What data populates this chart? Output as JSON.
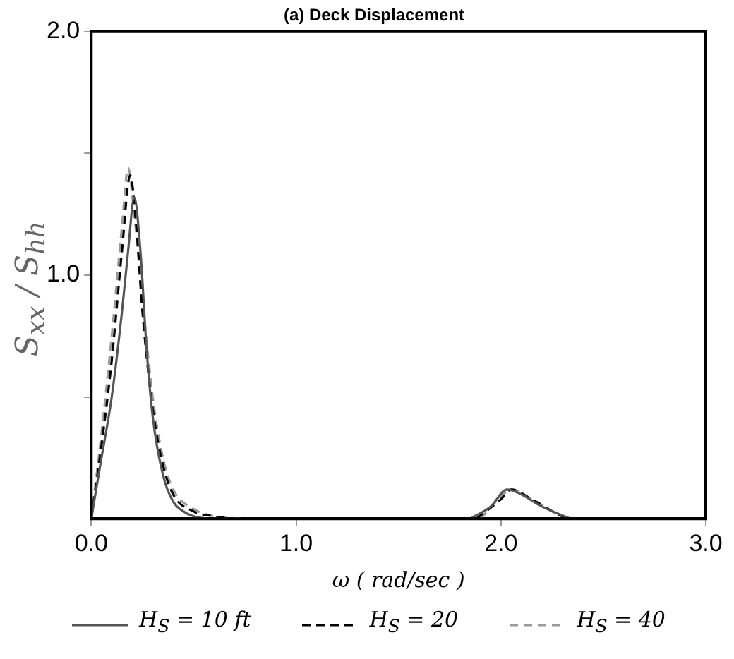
{
  "chart_data": {
    "type": "line",
    "title": "(a) Deck Displacement",
    "xlabel": "ω ( rad/sec )",
    "ylabel": "S$_{xx}$ / S$_{hh}$",
    "xlim": [
      0,
      3
    ],
    "xticks": [
      {
        "value": 0,
        "label": "0.0"
      },
      {
        "value": 1,
        "label": "1.0"
      },
      {
        "value": 2,
        "label": "2.0"
      },
      {
        "value": 3,
        "label": "3.0"
      }
    ],
    "ylim": [
      0,
      2
    ],
    "yticks": [
      {
        "value": 0.5,
        "label": null
      },
      {
        "value": 1,
        "label": "1.0"
      },
      {
        "value": 1.5,
        "label": null
      },
      {
        "value": 2,
        "label": "2.0"
      }
    ],
    "grid": false,
    "legend": "bottom",
    "marker": "none",
    "series": [
      {
        "name": "H$_{S}$ = 10 ft",
        "color": "#555555",
        "line_style": "solid",
        "x": [
          0,
          0.05,
          0.1,
          0.15,
          0.18,
          0.21,
          0.24,
          0.27,
          0.3,
          0.35,
          0.4,
          0.45,
          0.5,
          0.6,
          0.7,
          1.3,
          1.85,
          1.95,
          2.03,
          2.1,
          2.2,
          2.34
        ],
        "values": [
          0,
          0.25,
          0.5,
          0.85,
          1.1,
          1.32,
          1.1,
          0.7,
          0.42,
          0.18,
          0.07,
          0.03,
          0.01,
          0,
          0,
          null,
          0,
          0.05,
          0.12,
          0.1,
          0.05,
          0
        ]
      },
      {
        "name": "H$_{S}$ = 20",
        "color": "#000000",
        "line_style": "dashed",
        "x": [
          0,
          0.05,
          0.1,
          0.15,
          0.19,
          0.22,
          0.25,
          0.3,
          0.35,
          0.4,
          0.5,
          0.6,
          0.7,
          1.3,
          1.88,
          2.0,
          2.05,
          2.15,
          2.3,
          2.35
        ],
        "values": [
          0,
          0.3,
          0.65,
          1.1,
          1.41,
          1.2,
          0.85,
          0.45,
          0.22,
          0.1,
          0.03,
          0.01,
          0,
          null,
          0,
          0.08,
          0.12,
          0.08,
          0.01,
          0
        ]
      },
      {
        "name": "H$_{S}$ = 40",
        "color": "#999999",
        "line_style": "dashed",
        "x": [
          0,
          0.05,
          0.1,
          0.15,
          0.18,
          0.21,
          0.25,
          0.3,
          0.35,
          0.4,
          0.5,
          0.6,
          0.75,
          1.3,
          1.9,
          2.0,
          2.05,
          2.15,
          2.3,
          2.35
        ],
        "values": [
          0,
          0.35,
          0.75,
          1.2,
          1.44,
          1.25,
          0.9,
          0.5,
          0.25,
          0.12,
          0.04,
          0.01,
          0,
          null,
          0,
          0.09,
          0.12,
          0.08,
          0.01,
          0
        ]
      }
    ]
  }
}
